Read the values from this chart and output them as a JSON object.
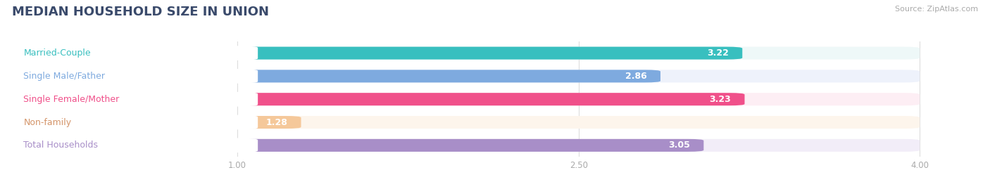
{
  "title": "MEDIAN HOUSEHOLD SIZE IN UNION",
  "source": "Source: ZipAtlas.com",
  "categories": [
    "Married-Couple",
    "Single Male/Father",
    "Single Female/Mother",
    "Non-family",
    "Total Households"
  ],
  "values": [
    3.22,
    2.86,
    3.23,
    1.28,
    3.05
  ],
  "bar_colors": [
    "#38bfbf",
    "#7eaadf",
    "#f0508a",
    "#f5c89a",
    "#a88ec8"
  ],
  "bar_bg_colors": [
    "#eef8f8",
    "#eef2fb",
    "#fdeef4",
    "#fdf5ec",
    "#f2edf8"
  ],
  "label_colors": [
    "#38bfbf",
    "#7eaadf",
    "#f0508a",
    "#d4956a",
    "#a88ec8"
  ],
  "xlim": [
    0.0,
    4.2
  ],
  "xmin": 0.0,
  "xmax": 4.0,
  "xticks": [
    1.0,
    2.5,
    4.0
  ],
  "title_fontsize": 13,
  "label_fontsize": 9,
  "value_fontsize": 9,
  "source_fontsize": 8,
  "title_color": "#3a4a6b",
  "background_color": "#ffffff",
  "tick_color": "#aaaaaa",
  "grid_color": "#dddddd"
}
